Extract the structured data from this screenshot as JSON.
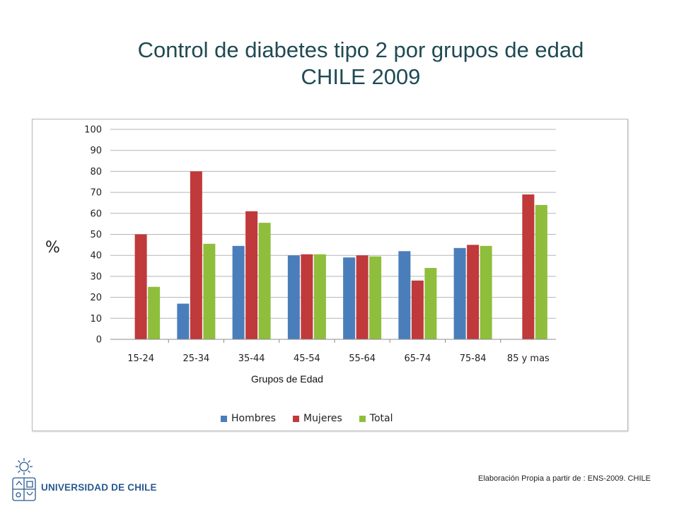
{
  "title": {
    "line1": "Control de diabetes tipo 2 por grupos de edad",
    "line2": "CHILE 2009"
  },
  "chart_data": {
    "type": "bar",
    "title": "Control de diabetes tipo 2 por grupos de edad CHILE 2009",
    "xlabel": "Grupos de Edad",
    "ylabel": "%",
    "ylim": [
      0,
      100
    ],
    "yticks": [
      0,
      10,
      20,
      30,
      40,
      50,
      60,
      70,
      80,
      90,
      100
    ],
    "grid": true,
    "legend_position": "bottom",
    "categories": [
      "15-24",
      "25-34",
      "35-44",
      "45-54",
      "55-64",
      "65-74",
      "75-84",
      "85 y mas"
    ],
    "series": [
      {
        "name": "Hombres",
        "color": "#4a7ebb",
        "values": [
          null,
          17,
          44.5,
          40,
          39,
          42,
          43.5,
          null
        ]
      },
      {
        "name": "Mujeres",
        "color": "#c0393b",
        "values": [
          50,
          80,
          61,
          40.5,
          40,
          28,
          45,
          69
        ]
      },
      {
        "name": "Total",
        "color": "#8fbe3c",
        "values": [
          25,
          45.5,
          55.5,
          40.5,
          39.5,
          34,
          44.5,
          64
        ]
      }
    ]
  },
  "logo": {
    "text": "UNIVERSIDAD DE CHILE"
  },
  "source": {
    "text": "Elaboración Propia a partir de : ENS-2009. CHILE"
  }
}
